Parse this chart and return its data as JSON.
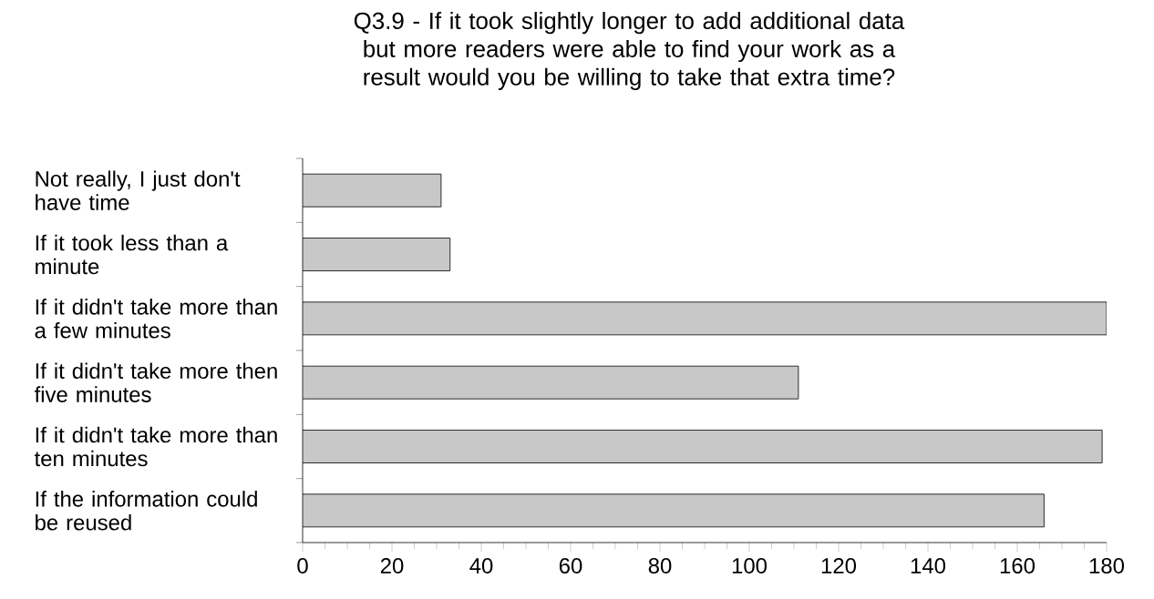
{
  "chart_data": {
    "type": "bar",
    "orientation": "horizontal",
    "title": "Q3.9 - If it took slightly longer to add additional data but more readers were able to find your work as a result would you be willing to take that extra time?",
    "categories": [
      "Not really, I just don't have time",
      "If it took less than a minute",
      "If it didn't take more than a few minutes",
      "If it didn't take more then five minutes",
      "If it didn't take more than ten minutes",
      "If the information could be reused"
    ],
    "values": [
      31,
      33,
      180,
      111,
      179,
      166
    ],
    "color": "#c8c8c8",
    "xlim": [
      0,
      180
    ],
    "xticks": [
      0,
      20,
      40,
      60,
      80,
      100,
      120,
      140,
      160,
      180
    ],
    "grid": false
  }
}
